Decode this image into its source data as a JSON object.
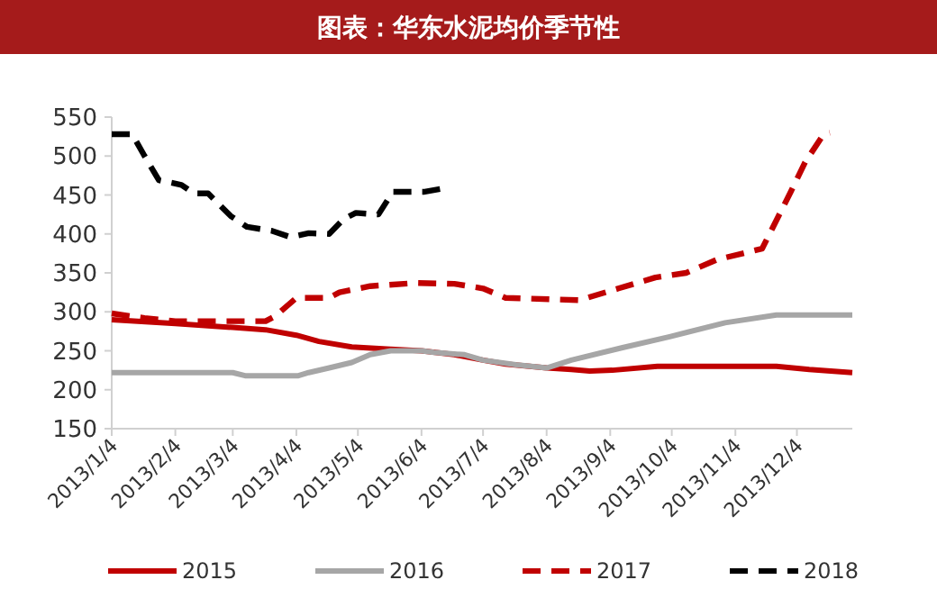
{
  "chart_data": {
    "type": "line",
    "title": "图表：华东水泥均价季节性",
    "xlim": [
      "2013-01-04",
      "2013-12-31"
    ],
    "xticks": [
      {
        "value": "2013-01-04",
        "label": "2013/1/4"
      },
      {
        "value": "2013-02-04",
        "label": "2013/2/4"
      },
      {
        "value": "2013-03-04",
        "label": "2013/3/4"
      },
      {
        "value": "2013-04-04",
        "label": "2013/4/4"
      },
      {
        "value": "2013-05-04",
        "label": "2013/5/4"
      },
      {
        "value": "2013-06-04",
        "label": "2013/6/4"
      },
      {
        "value": "2013-07-04",
        "label": "2013/7/4"
      },
      {
        "value": "2013-08-04",
        "label": "2013/8/4"
      },
      {
        "value": "2013-09-04",
        "label": "2013/9/4"
      },
      {
        "value": "2013-10-04",
        "label": "2013/10/4"
      },
      {
        "value": "2013-11-04",
        "label": "2013/11/4"
      },
      {
        "value": "2013-12-04",
        "label": "2013/12/4"
      }
    ],
    "ylim": [
      150,
      550
    ],
    "yticks": [
      150,
      200,
      250,
      300,
      350,
      400,
      450,
      500,
      550
    ],
    "grid": false,
    "legend": "bottom",
    "marker": "none",
    "series": [
      {
        "name": "2015",
        "color": "#c00000",
        "line_style": "solid",
        "x": [
          "2013-01-04",
          "2013-02-04",
          "2013-03-04",
          "2013-03-20",
          "2013-04-04",
          "2013-04-15",
          "2013-05-01",
          "2013-05-20",
          "2013-06-04",
          "2013-06-20",
          "2013-07-04",
          "2013-07-15",
          "2013-08-04",
          "2013-08-16",
          "2013-08-25",
          "2013-09-05",
          "2013-09-27",
          "2013-10-20",
          "2013-11-24",
          "2013-12-10",
          "2013-12-31"
        ],
        "values": [
          290,
          285,
          280,
          277,
          270,
          262,
          255,
          252,
          250,
          245,
          238,
          233,
          228,
          226,
          224,
          225,
          230,
          230,
          230,
          226,
          222
        ]
      },
      {
        "name": "2016",
        "color": "#a6a6a6",
        "line_style": "solid",
        "x": [
          "2013-01-04",
          "2013-03-04",
          "2013-03-10",
          "2013-04-05",
          "2013-04-10",
          "2013-04-20",
          "2013-05-01",
          "2013-05-10",
          "2013-05-20",
          "2013-06-04",
          "2013-06-10",
          "2013-06-25",
          "2013-07-04",
          "2013-07-20",
          "2013-08-04",
          "2013-08-16",
          "2013-09-10",
          "2013-10-03",
          "2013-10-30",
          "2013-11-24",
          "2013-12-31"
        ],
        "values": [
          222,
          222,
          218,
          218,
          222,
          228,
          235,
          245,
          250,
          250,
          248,
          245,
          238,
          232,
          228,
          238,
          254,
          268,
          286,
          296,
          296
        ]
      },
      {
        "name": "2017",
        "color": "#c00000",
        "line_style": "dashed",
        "x": [
          "2013-01-04",
          "2013-01-20",
          "2013-02-04",
          "2013-03-20",
          "2013-03-25",
          "2013-04-04",
          "2013-04-20",
          "2013-04-25",
          "2013-05-10",
          "2013-06-01",
          "2013-06-20",
          "2013-07-04",
          "2013-07-15",
          "2013-08-20",
          "2013-09-08",
          "2013-09-26",
          "2013-10-11",
          "2013-10-26",
          "2013-11-17",
          "2013-11-22",
          "2013-12-01",
          "2013-12-08",
          "2013-12-17",
          "2013-12-20"
        ],
        "values": [
          298,
          292,
          288,
          288,
          295,
          318,
          318,
          325,
          333,
          337,
          336,
          330,
          318,
          315,
          330,
          344,
          350,
          367,
          381,
          407,
          454,
          492,
          528,
          530
        ]
      },
      {
        "name": "2018",
        "color": "#000000",
        "line_style": "dashed",
        "x": [
          "2013-01-04",
          "2013-01-14",
          "2013-01-20",
          "2013-01-27",
          "2013-02-07",
          "2013-02-13",
          "2013-02-20",
          "2013-03-03",
          "2013-03-11",
          "2013-03-23",
          "2013-04-01",
          "2013-04-10",
          "2013-04-20",
          "2013-04-27",
          "2013-05-03",
          "2013-05-14",
          "2013-05-21",
          "2013-06-05",
          "2013-06-14"
        ],
        "values": [
          528,
          528,
          500,
          469,
          463,
          452,
          452,
          423,
          409,
          404,
          396,
          401,
          400,
          419,
          427,
          425,
          454,
          454,
          458
        ]
      }
    ]
  }
}
